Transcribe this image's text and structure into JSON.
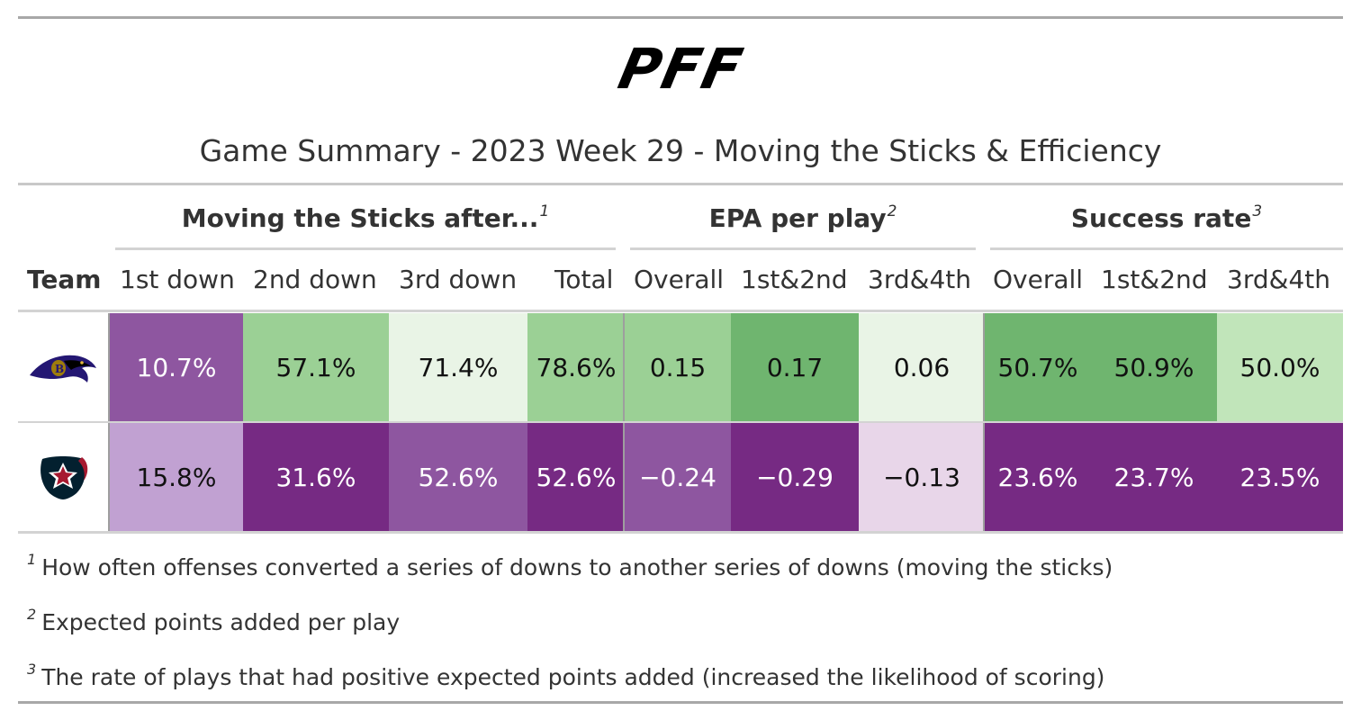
{
  "title": "Game Summary - 2023 Week 29 - Moving the Sticks & Efficiency",
  "logo_text": "PFF",
  "spanners": [
    {
      "label": "Moving the Sticks after...",
      "note": "1"
    },
    {
      "label": "EPA per play",
      "note": "2"
    },
    {
      "label": "Success rate",
      "note": "3"
    }
  ],
  "columns": {
    "team": "Team",
    "mts_1st": "1st down",
    "mts_2nd": "2nd down",
    "mts_3rd": "3rd down",
    "mts_total": "Total",
    "epa_overall": "Overall",
    "epa_12": "1st&2nd",
    "epa_34": "3rd&4th",
    "sr_overall": "Overall",
    "sr_12": "1st&2nd",
    "sr_34": "3rd&4th"
  },
  "rows": [
    {
      "team_icon": "ravens-logo-icon",
      "cells": [
        {
          "value": "10.7%",
          "bg": "#8e56a0",
          "fg": "#ffffff"
        },
        {
          "value": "57.1%",
          "bg": "#9bd095",
          "fg": "#111111"
        },
        {
          "value": "71.4%",
          "bg": "#e9f4e6",
          "fg": "#111111"
        },
        {
          "value": "78.6%",
          "bg": "#9bd095",
          "fg": "#111111"
        },
        {
          "value": "0.15",
          "bg": "#9bd095",
          "fg": "#111111"
        },
        {
          "value": "0.17",
          "bg": "#6fb56f",
          "fg": "#111111"
        },
        {
          "value": "0.06",
          "bg": "#e9f4e6",
          "fg": "#111111"
        },
        {
          "value": "50.7%",
          "bg": "#6fb56f",
          "fg": "#111111"
        },
        {
          "value": "50.9%",
          "bg": "#6fb56f",
          "fg": "#111111"
        },
        {
          "value": "50.0%",
          "bg": "#c1e5ba",
          "fg": "#111111"
        }
      ]
    },
    {
      "team_icon": "texans-logo-icon",
      "cells": [
        {
          "value": "15.8%",
          "bg": "#c1a1d2",
          "fg": "#111111"
        },
        {
          "value": "31.6%",
          "bg": "#762a83",
          "fg": "#ffffff"
        },
        {
          "value": "52.6%",
          "bg": "#8e56a0",
          "fg": "#ffffff"
        },
        {
          "value": "52.6%",
          "bg": "#762a83",
          "fg": "#ffffff"
        },
        {
          "value": "−0.24",
          "bg": "#8e56a0",
          "fg": "#ffffff"
        },
        {
          "value": "−0.29",
          "bg": "#762a83",
          "fg": "#ffffff"
        },
        {
          "value": "−0.13",
          "bg": "#e8d6e9",
          "fg": "#111111"
        },
        {
          "value": "23.6%",
          "bg": "#762a83",
          "fg": "#ffffff"
        },
        {
          "value": "23.7%",
          "bg": "#762a83",
          "fg": "#ffffff"
        },
        {
          "value": "23.5%",
          "bg": "#762a83",
          "fg": "#ffffff"
        }
      ]
    }
  ],
  "footnotes": [
    {
      "mark": "1",
      "text": "How often offenses converted a series of downs to another series of downs (moving the sticks)"
    },
    {
      "mark": "2",
      "text": "Expected points added per play"
    },
    {
      "mark": "3",
      "text": "The rate of plays that had positive expected points added (increased the likelihood of scoring)"
    }
  ]
}
